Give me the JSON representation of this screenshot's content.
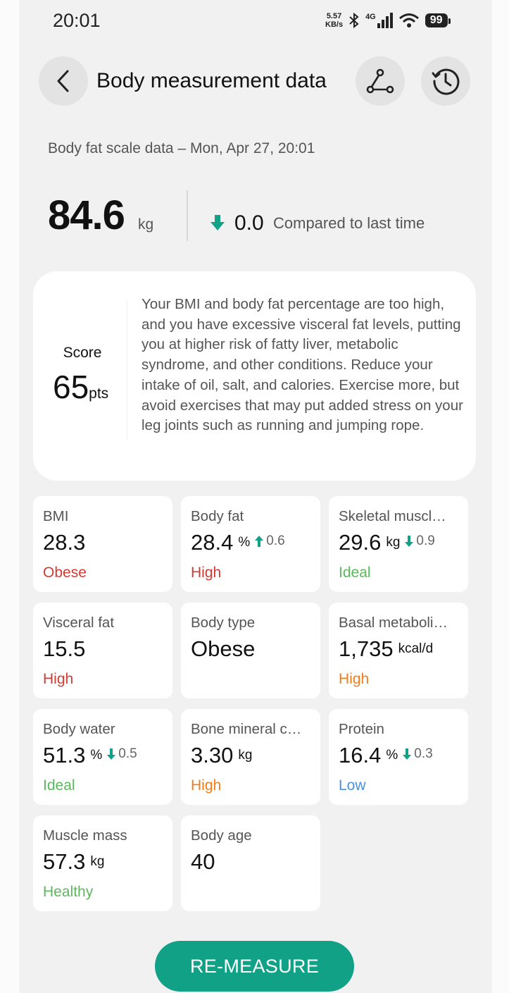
{
  "status_bar": {
    "time": "20:01",
    "net_speed_top": "5.57",
    "net_speed_bottom": "KB/s",
    "network": "4G",
    "battery": "99"
  },
  "header": {
    "title": "Body measurement data",
    "back_icon": "chevron-left-icon",
    "scale_icon": "scale-icon",
    "history_icon": "history-clock-icon"
  },
  "summary": {
    "subtitle": "Body fat scale data – Mon, Apr 27, 20:01",
    "weight": "84.6",
    "weight_unit": "kg",
    "delta_value": "0.0",
    "delta_label": "Compared to last time"
  },
  "score": {
    "label": "Score",
    "value": "65",
    "unit": "pts",
    "advice": "Your BMI and body fat percentage are too high, and you have excessive visceral fat levels, putting you at higher risk of fatty liver, metabolic syndrome, and other conditions. Reduce your intake of oil, salt, and calories. Exercise more, but avoid exercises that may put added stress on your leg joints such as running and jumping rope."
  },
  "colors": {
    "accent": "#10a187",
    "red": "#d13b34",
    "orange": "#ef7c1d",
    "green": "#5cb85c",
    "blue": "#4a90e2"
  },
  "metrics": [
    {
      "label": "BMI",
      "value": "28.3",
      "unit": "",
      "delta": "",
      "delta_dir": "",
      "status": "Obese",
      "status_color": "#d13b34"
    },
    {
      "label": "Body fat",
      "value": "28.4",
      "unit": "%",
      "delta": "0.6",
      "delta_dir": "up",
      "status": "High",
      "status_color": "#d13b34"
    },
    {
      "label": "Skeletal muscl…",
      "value": "29.6",
      "unit": "kg",
      "delta": "0.9",
      "delta_dir": "down",
      "status": "Ideal",
      "status_color": "#5cb85c"
    },
    {
      "label": "Visceral fat",
      "value": "15.5",
      "unit": "",
      "delta": "",
      "delta_dir": "",
      "status": "High",
      "status_color": "#d13b34"
    },
    {
      "label": "Body type",
      "value": "Obese",
      "unit": "",
      "delta": "",
      "delta_dir": "",
      "status": "",
      "status_color": ""
    },
    {
      "label": "Basal metaboli…",
      "value": "1,735",
      "unit": "kcal/d",
      "delta": "",
      "delta_dir": "",
      "status": "High",
      "status_color": "#ef7c1d"
    },
    {
      "label": "Body water",
      "value": "51.3",
      "unit": "%",
      "delta": "0.5",
      "delta_dir": "down",
      "status": "Ideal",
      "status_color": "#5cb85c"
    },
    {
      "label": "Bone mineral c…",
      "value": "3.30",
      "unit": "kg",
      "delta": "",
      "delta_dir": "",
      "status": "High",
      "status_color": "#ef7c1d"
    },
    {
      "label": "Protein",
      "value": "16.4",
      "unit": "%",
      "delta": "0.3",
      "delta_dir": "down",
      "status": "Low",
      "status_color": "#4a90e2"
    },
    {
      "label": "Muscle mass",
      "value": "57.3",
      "unit": "kg",
      "delta": "",
      "delta_dir": "",
      "status": "Healthy",
      "status_color": "#5cb85c"
    },
    {
      "label": "Body age",
      "value": "40",
      "unit": "",
      "delta": "",
      "delta_dir": "",
      "status": "",
      "status_color": ""
    }
  ],
  "button": {
    "remeasure": "RE-MEASURE"
  }
}
